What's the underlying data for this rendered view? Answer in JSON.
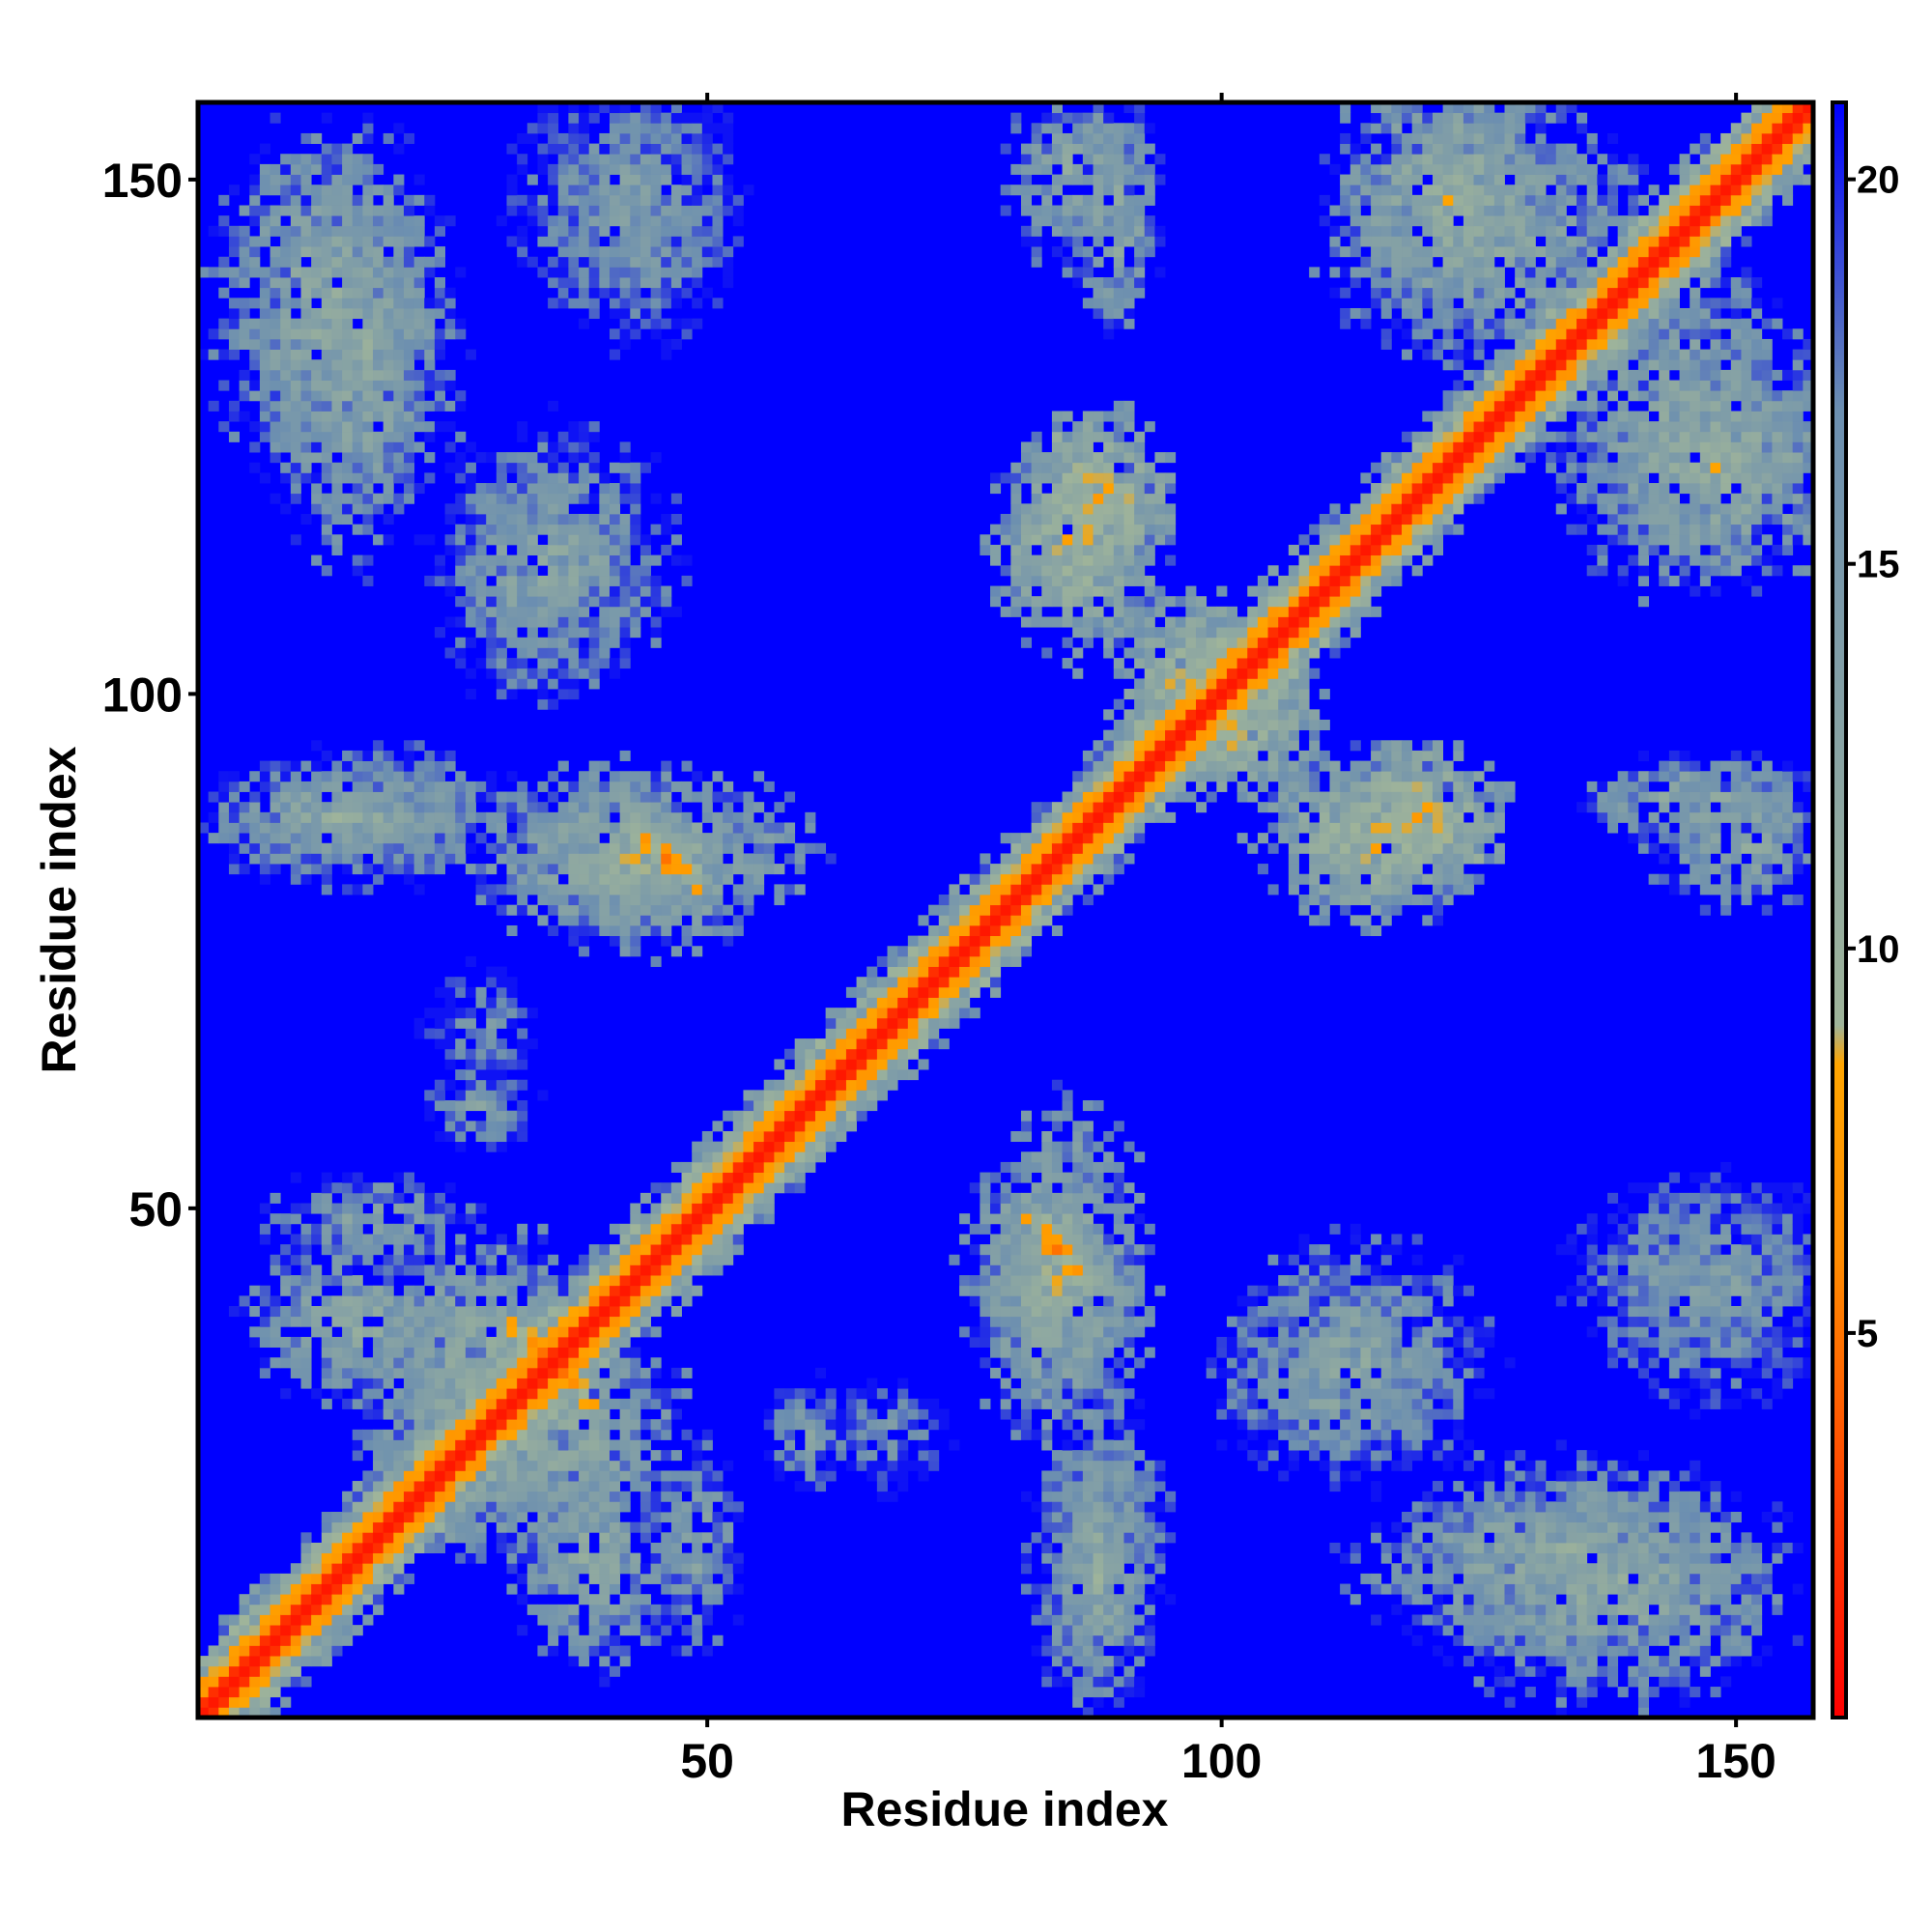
{
  "chart_data": {
    "type": "heatmap",
    "title": "",
    "xlabel": "Residue index",
    "ylabel": "Residue index",
    "xlim": [
      1,
      157
    ],
    "ylim": [
      1,
      157
    ],
    "x_ticks": [
      50,
      100,
      150
    ],
    "y_ticks": [
      50,
      100,
      150
    ],
    "x_tick_labels": [
      "50",
      "100",
      "150"
    ],
    "y_tick_labels": [
      "50",
      "100",
      "150"
    ],
    "colorbar": {
      "range": [
        0,
        21
      ],
      "ticks": [
        5,
        10,
        15,
        20
      ],
      "tick_labels": [
        "5",
        "10",
        "15",
        "20"
      ],
      "stops": [
        {
          "value": 0,
          "color": "#ff0000"
        },
        {
          "value": 6,
          "color": "#ff8c00"
        },
        {
          "value": 8.5,
          "color": "#ffa500"
        },
        {
          "value": 9,
          "color": "#9fb49a"
        },
        {
          "value": 17,
          "color": "#6c8fb0"
        },
        {
          "value": 21,
          "color": "#0000ff"
        }
      ]
    },
    "background_color": "#0000ff",
    "symmetric": true,
    "clusters": [
      {
        "x": 1,
        "y": 1,
        "rx": 2,
        "ry": 2,
        "kind": "diagonal"
      },
      {
        "x": 13,
        "y": 138,
        "rx": 10,
        "ry": 16,
        "level": 12
      },
      {
        "x": 44,
        "y": 146,
        "rx": 8,
        "ry": 11,
        "level": 14
      },
      {
        "x": 36,
        "y": 113,
        "rx": 10,
        "ry": 12,
        "level": 13
      },
      {
        "x": 14,
        "y": 88,
        "rx": 12,
        "ry": 5,
        "level": 12
      },
      {
        "x": 42,
        "y": 84,
        "rx": 9,
        "ry": 7,
        "level": 11
      },
      {
        "x": 47,
        "y": 84,
        "rx": 6,
        "ry": 4,
        "level": 6,
        "band": "anti"
      },
      {
        "x": 28,
        "y": 68,
        "rx": 5,
        "ry": 5,
        "level": 15
      },
      {
        "x": 17,
        "y": 49,
        "rx": 9,
        "ry": 4,
        "level": 13
      },
      {
        "x": 28,
        "y": 33,
        "rx": 10,
        "ry": 14,
        "level": 11
      },
      {
        "x": 37,
        "y": 33,
        "rx": 4,
        "ry": 5,
        "level": 5,
        "band": "anti"
      },
      {
        "x": 39,
        "y": 16,
        "rx": 7,
        "ry": 10,
        "level": 12
      },
      {
        "x": 60,
        "y": 28,
        "rx": 4,
        "ry": 5,
        "level": 14
      },
      {
        "x": 84,
        "y": 44,
        "rx": 8,
        "ry": 15,
        "level": 11
      },
      {
        "x": 84,
        "y": 46,
        "rx": 5,
        "ry": 5,
        "level": 5,
        "band": "anti"
      },
      {
        "x": 88,
        "y": 17,
        "rx": 6,
        "ry": 14,
        "level": 13
      },
      {
        "x": 112,
        "y": 33,
        "rx": 11,
        "ry": 9,
        "level": 13
      },
      {
        "x": 148,
        "y": 42,
        "rx": 11,
        "ry": 10,
        "level": 14
      },
      {
        "x": 133,
        "y": 16,
        "rx": 18,
        "ry": 9,
        "level": 12
      },
      {
        "x": 86,
        "y": 114,
        "rx": 8,
        "ry": 10,
        "level": 10
      },
      {
        "x": 98,
        "y": 101,
        "rx": 8,
        "ry": 8,
        "level": 9
      },
      {
        "x": 119,
        "y": 88,
        "rx": 8,
        "ry": 7,
        "level": 9
      },
      {
        "x": 121,
        "y": 88,
        "rx": 6,
        "ry": 4,
        "level": 6,
        "band": "anti"
      },
      {
        "x": 146,
        "y": 90,
        "rx": 10,
        "ry": 4,
        "level": 12
      },
      {
        "x": 86,
        "y": 150,
        "rx": 6,
        "ry": 8,
        "level": 12
      },
      {
        "x": 122,
        "y": 148,
        "rx": 10,
        "ry": 12,
        "level": 11
      },
      {
        "x": 145,
        "y": 126,
        "rx": 12,
        "ry": 14,
        "level": 12
      },
      {
        "x": 120,
        "y": 120,
        "rx": 14,
        "ry": 5,
        "level": 10,
        "band": "diag"
      }
    ]
  }
}
